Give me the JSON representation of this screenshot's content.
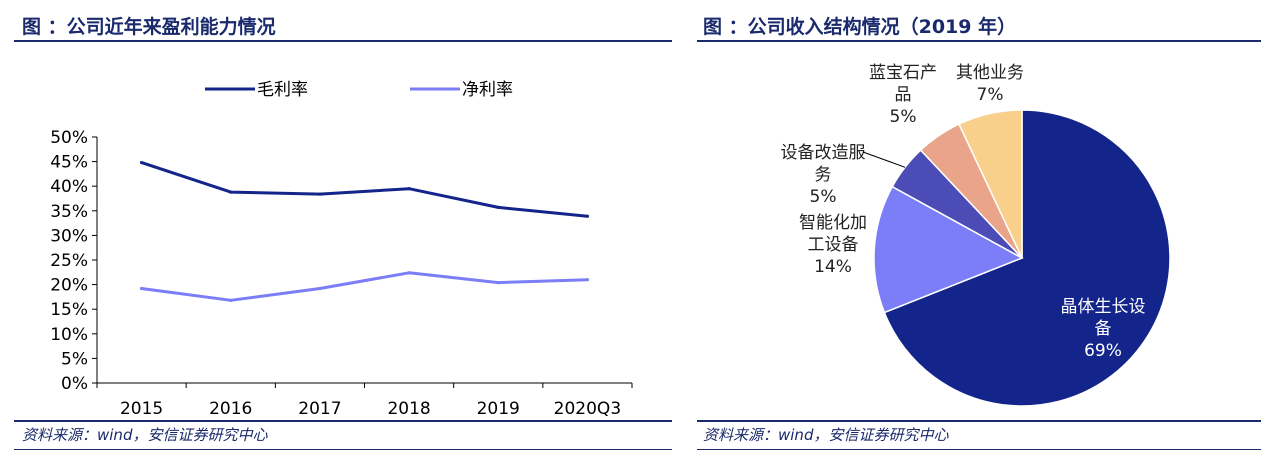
{
  "left_panel": {
    "title": "图 ：公司近年来盈利能力情况",
    "source": "资料来源：wind，安信证券研究中心"
  },
  "right_panel": {
    "title": "图 ：公司收入结构情况（2019 年）",
    "source": "资料来源：wind，安信证券研究中心"
  },
  "colors": {
    "title_blue": "#1a2a6c",
    "gross_margin": "#13258a",
    "net_margin": "#7b7ef7",
    "pie": [
      "#13258a",
      "#7b7ef7",
      "#4b4cb5",
      "#e9a489",
      "#f8d08c"
    ]
  },
  "chart_data": [
    {
      "type": "line",
      "title": "",
      "categories": [
        "2015",
        "2016",
        "2017",
        "2018",
        "2019",
        "2020Q3"
      ],
      "series": [
        {
          "name": "毛利率",
          "values": [
            44.8,
            38.8,
            38.4,
            39.5,
            35.7,
            33.9
          ]
        },
        {
          "name": "净利率",
          "values": [
            19.2,
            16.8,
            19.2,
            22.4,
            20.4,
            21.0
          ]
        }
      ],
      "ylim": [
        0,
        50
      ],
      "y_ticks": [
        "0%",
        "5%",
        "10%",
        "15%",
        "20%",
        "25%",
        "30%",
        "35%",
        "40%",
        "45%",
        "50%"
      ],
      "grid": false,
      "legend": "top"
    },
    {
      "type": "pie",
      "title": "",
      "slices": [
        {
          "label_lines": [
            "晶体生长设",
            "备"
          ],
          "pct": "69%",
          "value": 69
        },
        {
          "label_lines": [
            "智能化加",
            "工设备"
          ],
          "pct": "14%",
          "value": 14
        },
        {
          "label_lines": [
            "设备改造服",
            "务"
          ],
          "pct": "5%",
          "value": 5
        },
        {
          "label_lines": [
            "蓝宝石产",
            "品"
          ],
          "pct": "5%",
          "value": 5
        },
        {
          "label_lines": [
            "其他业务"
          ],
          "pct": "7%",
          "value": 7
        }
      ]
    }
  ]
}
